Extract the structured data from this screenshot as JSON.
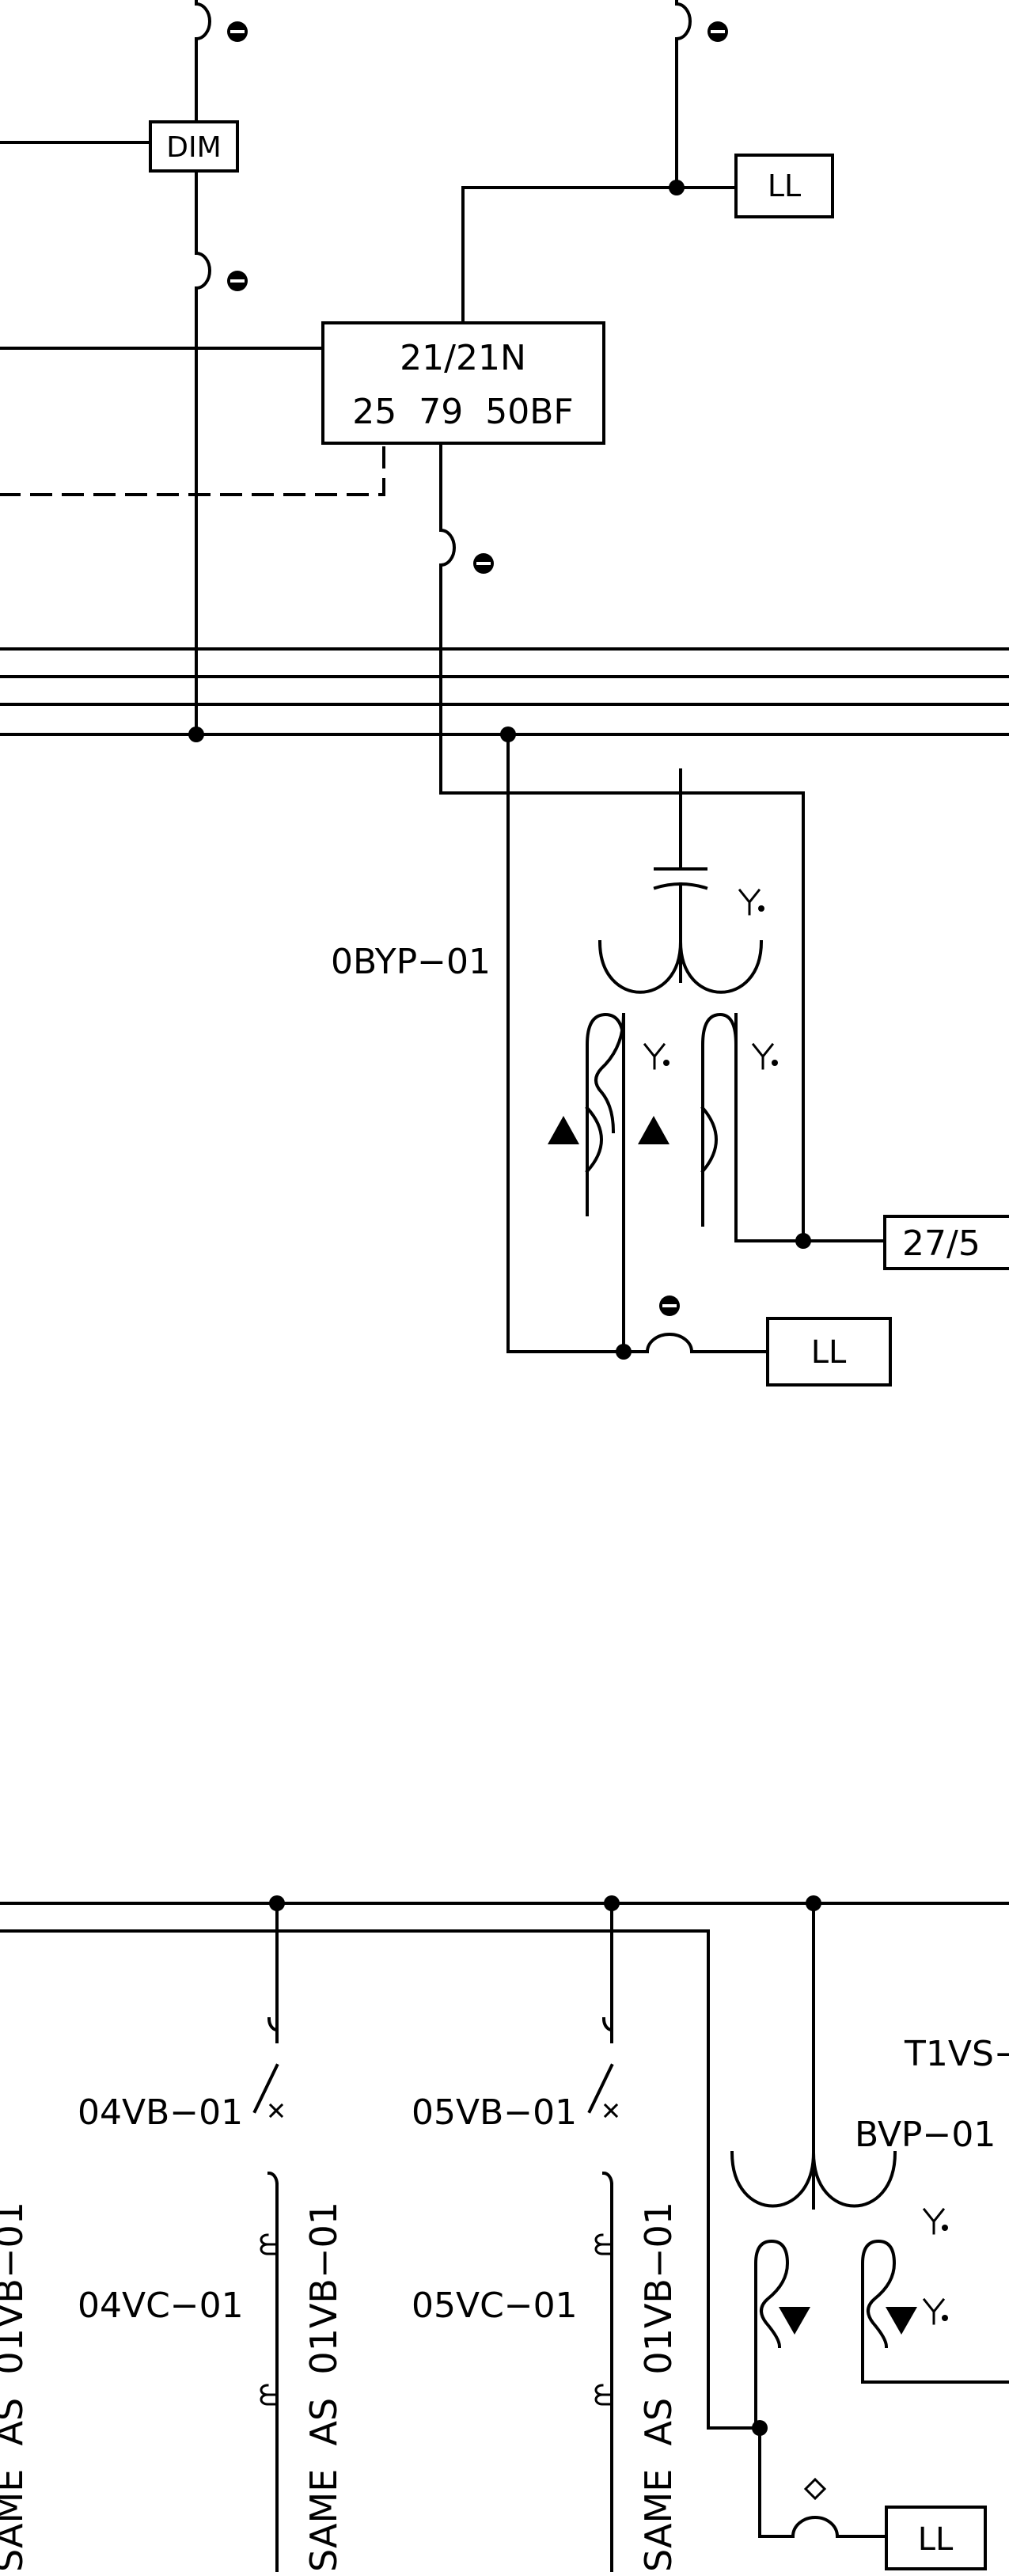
{
  "diagram": {
    "top_section": {
      "relay_dim": "DIM",
      "relay_ll_top": "LL",
      "relay_main_line1": "21/21N",
      "relay_main_line2": "25  79  50BF",
      "vt_label": "0BYP−01",
      "relay_partial": "27/5",
      "relay_ll_mid": "LL"
    },
    "bottom_section": {
      "t1vs_label": "T1VS−",
      "breaker_04vb": "04VB−01",
      "breaker_05vb": "05VB−01",
      "cap_04vc": "04VC−01",
      "cap_05vc": "05VC−01",
      "note_left": "SAME  AS  01VB−01",
      "note_04": "SAME  AS  01VB−01",
      "note_05": "SAME  AS  01VB−01",
      "vt_bvp": "BVP−01",
      "relay_ll_bottom": "LL"
    }
  }
}
